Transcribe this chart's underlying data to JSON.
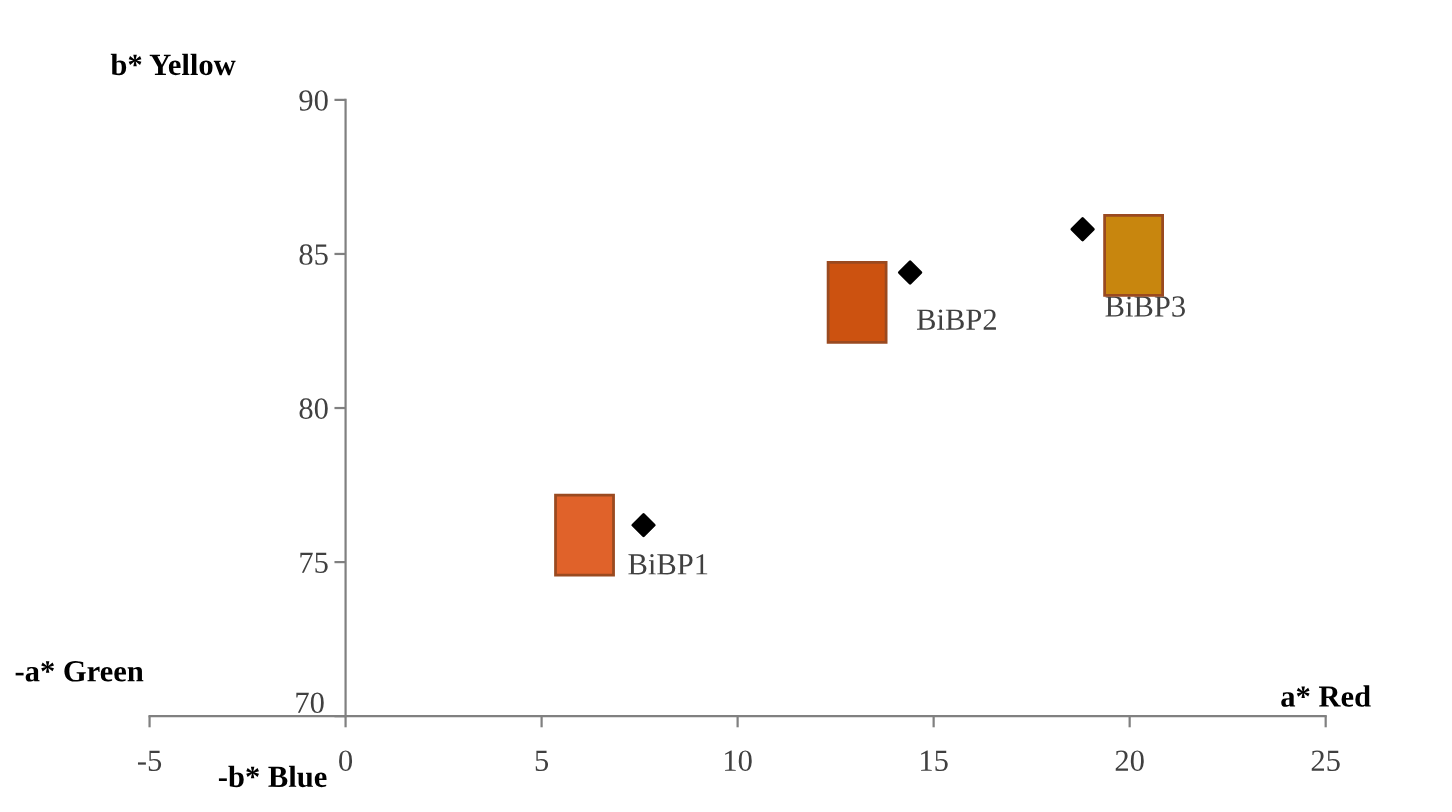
{
  "chart_data": {
    "type": "scatter",
    "xlabel": "a* Red",
    "ylabel": "b* Yellow",
    "x": [
      7.6,
      14.4,
      18.8
    ],
    "series": [
      {
        "color": "#000000",
        "values": [
          76.2,
          84.4,
          85.8
        ]
      }
    ],
    "marker": "diamond",
    "grid": false,
    "legend": false,
    "xlim": [
      -5,
      25
    ],
    "xticks": [
      -5,
      0,
      5,
      10,
      15,
      20,
      25
    ],
    "ylim": [
      70,
      90
    ],
    "yticks": [
      70,
      75,
      80,
      85,
      90
    ],
    "annotations": [
      {
        "text": "BiBP1",
        "x": 7.6,
        "y": 76.2
      },
      {
        "text": "BiBP2",
        "x": 14.4,
        "y": 84.4
      },
      {
        "text": "BiBP3",
        "x": 18.8,
        "y": 85.8
      },
      "-a* Green",
      "-b* Blue"
    ]
  }
}
